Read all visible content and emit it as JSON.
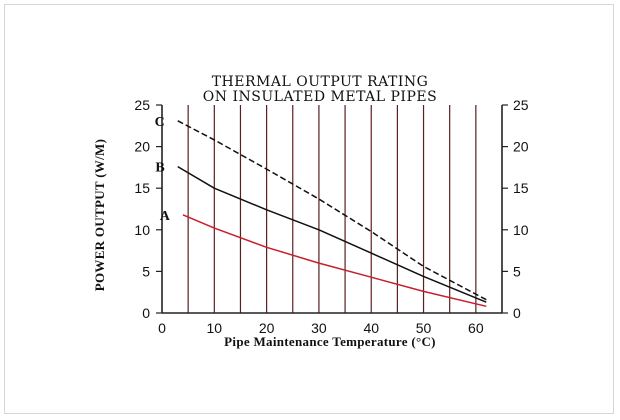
{
  "chart_data": {
    "type": "line",
    "title_lines": [
      "THERMAL OUTPUT RATING",
      "ON INSULATED METAL PIPES"
    ],
    "xlabel": "Pipe Maintenance Temperature (°C)",
    "ylabel": "POWER OUTPUT (W/M)",
    "xlim": [
      0,
      65
    ],
    "ylim": [
      0,
      25
    ],
    "x_ticks": [
      0,
      10,
      20,
      30,
      40,
      50,
      60
    ],
    "y_ticks": [
      0,
      5,
      10,
      15,
      20,
      25
    ],
    "x_gridlines": [
      0,
      5,
      10,
      15,
      20,
      25,
      30,
      35,
      40,
      45,
      50,
      55,
      60,
      65
    ],
    "secondary_y_axis": true,
    "series": [
      {
        "name": "C",
        "color": "#111111",
        "dashed": true,
        "points": [
          [
            3,
            23.1
          ],
          [
            10,
            20.8
          ],
          [
            20,
            17.3
          ],
          [
            30,
            13.7
          ],
          [
            40,
            9.8
          ],
          [
            50,
            5.6
          ],
          [
            62,
            1.6
          ]
        ]
      },
      {
        "name": "B",
        "color": "#111111",
        "dashed": false,
        "points": [
          [
            3,
            17.6
          ],
          [
            10,
            15.0
          ],
          [
            20,
            12.4
          ],
          [
            30,
            10.0
          ],
          [
            40,
            7.2
          ],
          [
            50,
            4.4
          ],
          [
            62,
            1.3
          ]
        ]
      },
      {
        "name": "A",
        "color": "#c81e2c",
        "dashed": false,
        "points": [
          [
            4,
            11.8
          ],
          [
            10,
            10.2
          ],
          [
            20,
            7.9
          ],
          [
            30,
            6.0
          ],
          [
            40,
            4.3
          ],
          [
            50,
            2.6
          ],
          [
            62,
            0.8
          ]
        ]
      }
    ]
  }
}
